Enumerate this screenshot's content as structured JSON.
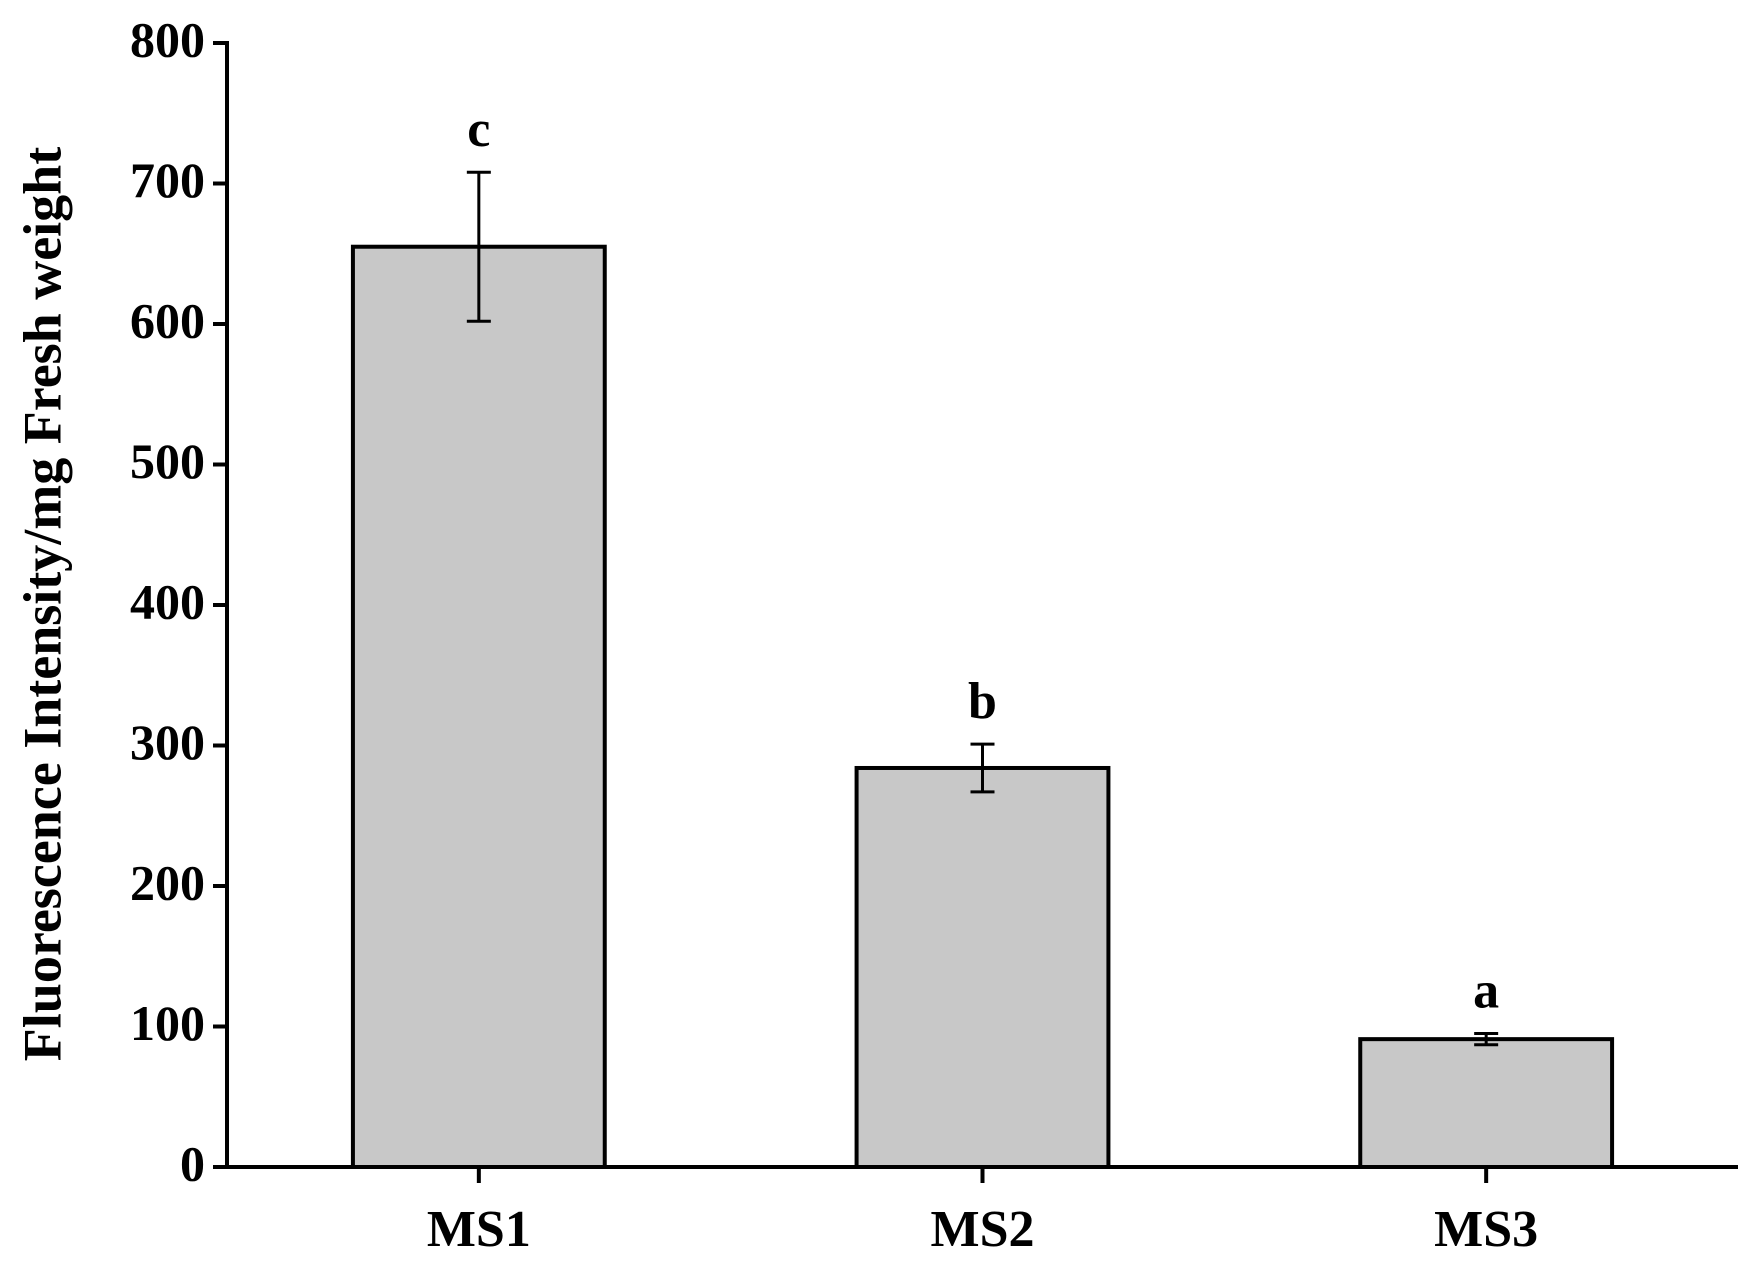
{
  "chart_data": {
    "type": "bar",
    "y_label": "Fluorescence Intensity/mg Fresh weight",
    "categories": [
      "MS1",
      "MS2",
      "MS3"
    ],
    "values": [
      655,
      284,
      91
    ],
    "errors": [
      53,
      17,
      4
    ],
    "annotations": [
      "c",
      "b",
      "a"
    ],
    "color": "#c8c8c8",
    "ylim": [
      0,
      800
    ],
    "yticks": [
      0,
      100,
      200,
      300,
      400,
      500,
      600,
      700,
      800
    ],
    "grid": false
  }
}
